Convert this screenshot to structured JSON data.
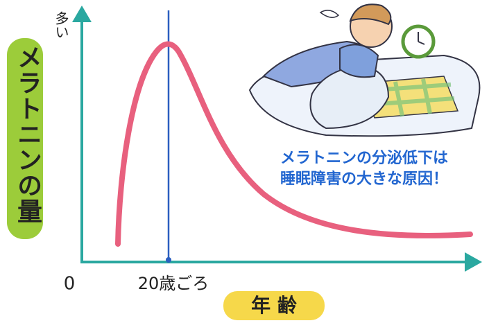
{
  "axis": {
    "y_top": "多い",
    "y_label": "メラトニンの量",
    "x_origin": "0",
    "x_peak": "20歳ごろ",
    "x_label": "年 齢"
  },
  "callout": {
    "lines": [
      "メラトニンの分泌低下は",
      "睡眠障害の大きな原因！"
    ]
  }
}
